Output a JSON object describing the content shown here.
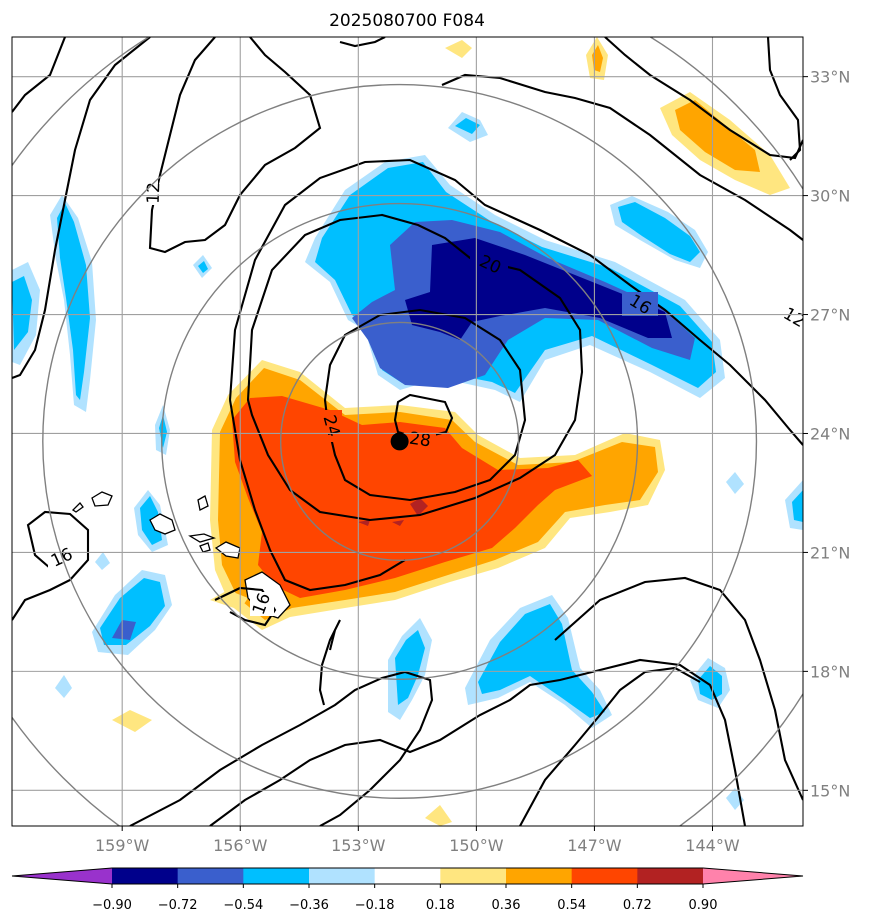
{
  "chart_data": {
    "type": "heatmap",
    "title": "2025080700 F084",
    "x_axis": {
      "ticks": [
        "159°W",
        "156°W",
        "153°W",
        "150°W",
        "147°W",
        "144°W"
      ],
      "values": [
        -159,
        -156,
        -153,
        -150,
        -147,
        -144
      ],
      "range": [
        -161.8,
        -141.7
      ]
    },
    "y_axis": {
      "ticks": [
        "15°N",
        "18°N",
        "21°N",
        "24°N",
        "27°N",
        "30°N",
        "33°N"
      ],
      "values": [
        15,
        18,
        21,
        24,
        27,
        30,
        33
      ],
      "range": [
        14.1,
        34.0
      ],
      "position": "right"
    },
    "grid": true,
    "storm_center": {
      "lon": -151.95,
      "lat": 23.8
    },
    "range_rings_radius_deg": [
      3,
      6,
      9,
      12
    ],
    "colorbar": {
      "position": "bottom",
      "levels": [
        -0.9,
        -0.72,
        -0.54,
        -0.36,
        -0.18,
        0.18,
        0.36,
        0.54,
        0.72,
        0.9
      ],
      "tick_labels": [
        "−0.90",
        "−0.72",
        "−0.54",
        "−0.36",
        "−0.18",
        "0.18",
        "0.36",
        "0.54",
        "0.72",
        "0.90"
      ],
      "colors": [
        "#9932cc",
        "#00008b",
        "#3a5fcd",
        "#00bfff",
        "#b0e2ff",
        "#ffffff",
        "#ffe680",
        "#ffa500",
        "#ff4500",
        "#b22222",
        "#ff82ab"
      ],
      "extend": "both"
    },
    "contour_labels": [
      "12",
      "12",
      "16",
      "16",
      "16",
      "20",
      "24",
      "28"
    ]
  }
}
